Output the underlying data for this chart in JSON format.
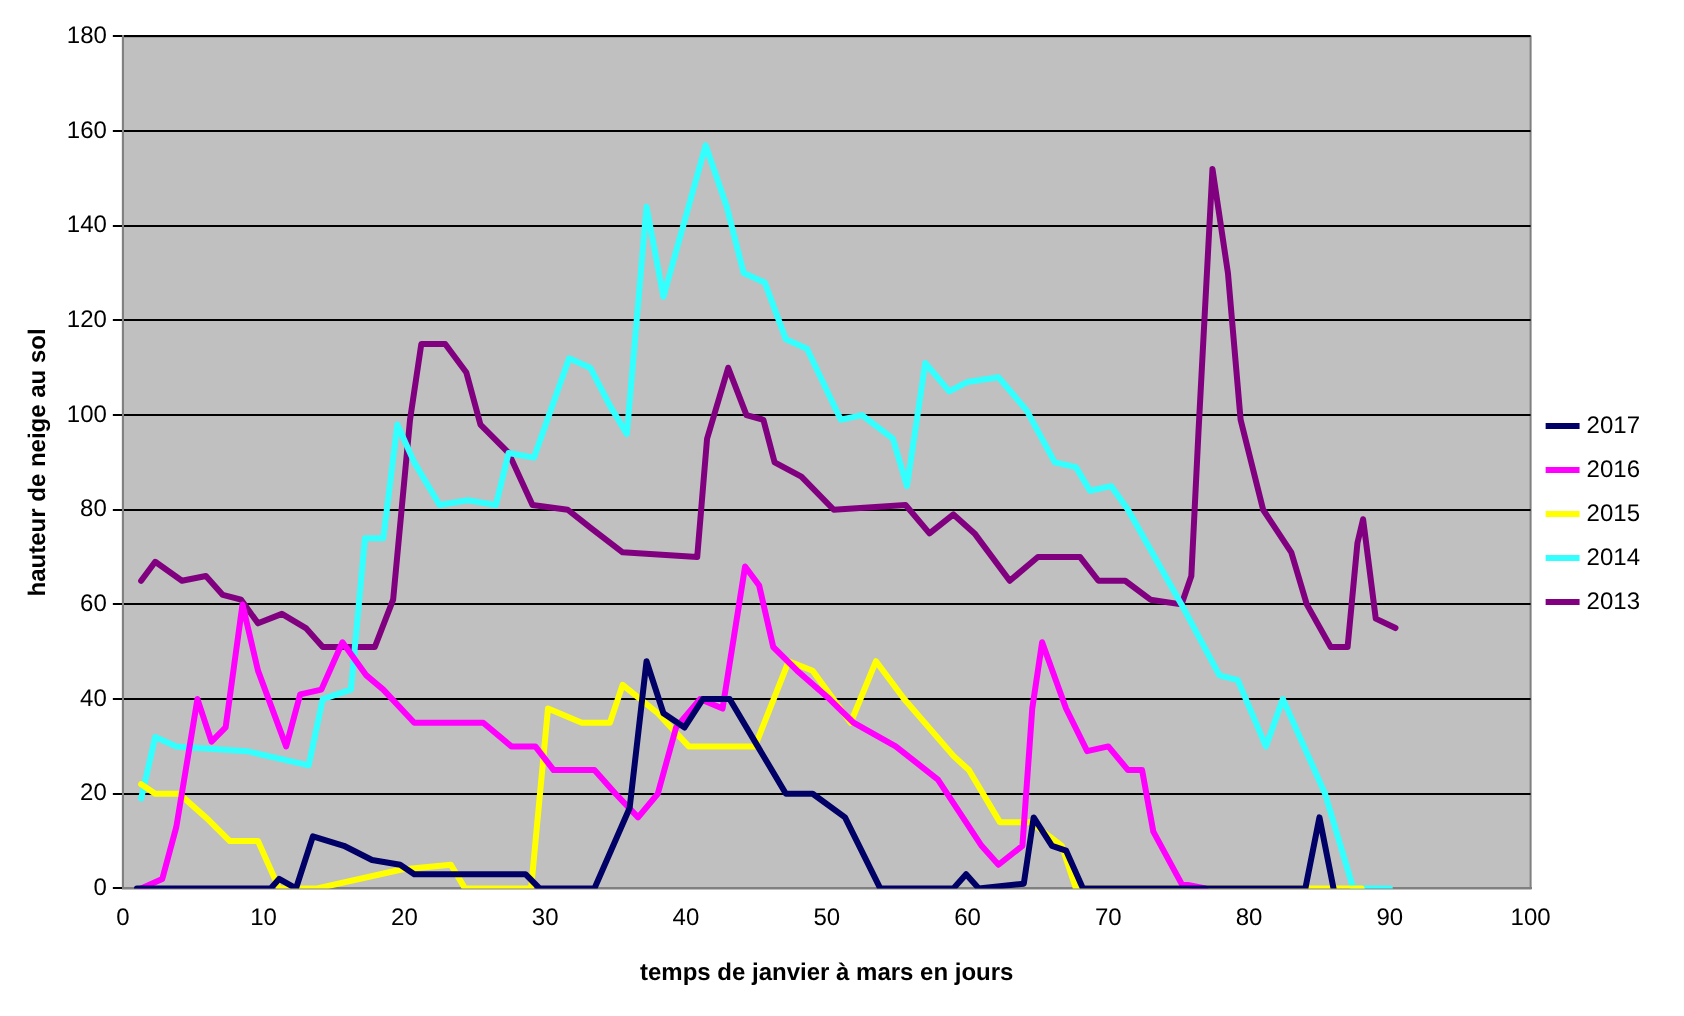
{
  "chart_data": {
    "type": "line",
    "xlabel": "temps de janvier à mars en jours",
    "ylabel": "hauteur de neige au sol",
    "xlim": [
      0,
      100
    ],
    "xticks": [
      0,
      10,
      20,
      30,
      40,
      50,
      60,
      70,
      80,
      90,
      100
    ],
    "ylim": [
      0,
      180
    ],
    "yticks": [
      0,
      20,
      40,
      60,
      80,
      100,
      120,
      140,
      160,
      180
    ],
    "grid": "y",
    "legend": "right",
    "marker": "none",
    "line_style": "solid",
    "series": [
      {
        "name": "2017",
        "color": "#000066",
        "x": [
          1,
          10.5,
          11.1,
          12.3,
          13.5,
          15.7,
          17.7,
          19.7,
          20.7,
          28.6,
          29.6,
          33.5,
          36,
          37.2,
          38.4,
          39.9,
          41.2,
          43.1,
          45.1,
          47.1,
          49,
          51.3,
          53.8,
          59,
          59.9,
          60.8,
          64,
          64.7,
          66,
          67,
          68.2,
          84,
          85,
          86
        ],
        "values": [
          0,
          0,
          2,
          0,
          11,
          9,
          6,
          5,
          3,
          3,
          0,
          0,
          17,
          48,
          37,
          34,
          40,
          40,
          30,
          20,
          20,
          15,
          0,
          0,
          3,
          0,
          1,
          15,
          9,
          8,
          0,
          0,
          15,
          0
        ]
      },
      {
        "name": "2016",
        "color": "#ff00ff",
        "x": [
          1.3,
          2.8,
          3.8,
          5.3,
          6.3,
          7.3,
          8.5,
          9.6,
          11.6,
          12.6,
          14.1,
          15.6,
          17.3,
          18.5,
          20.7,
          25.6,
          27.6,
          29.3,
          30.6,
          33.5,
          35,
          36.6,
          38,
          39.3,
          41,
          42.6,
          44.2,
          45.2,
          46.2,
          47.9,
          50.2,
          51.9,
          54.9,
          57.9,
          61,
          62.2,
          63.9,
          64.6,
          65.3,
          67,
          68.5,
          70,
          71.4,
          72.4,
          73.2,
          75.2,
          76.9
        ],
        "values": [
          0,
          2,
          13,
          40,
          31,
          34,
          60,
          46,
          30,
          41,
          42,
          52,
          45,
          42,
          35,
          35,
          30,
          30,
          25,
          25,
          20,
          15,
          20,
          34,
          40,
          38,
          68,
          64,
          51,
          46,
          40,
          35,
          30,
          23,
          9,
          5,
          9,
          38,
          52,
          38,
          29,
          30,
          25,
          25,
          12,
          1,
          0
        ]
      },
      {
        "name": "2015",
        "color": "#ffff00",
        "x": [
          1.3,
          2.3,
          4,
          5.9,
          7.6,
          9.6,
          11.1,
          13.8,
          19.8,
          23.3,
          24.3,
          29,
          30.2,
          32.6,
          34.6,
          35.5,
          38,
          40.2,
          44.9,
          47.3,
          49,
          51.7,
          53.5,
          55.5,
          59,
          60.1,
          62.3,
          64.5,
          66.7,
          67.7,
          88
        ],
        "values": [
          22,
          20,
          20,
          15,
          10,
          10,
          0,
          0,
          4,
          5,
          0,
          0,
          38,
          35,
          35,
          43,
          37,
          30,
          30,
          48,
          46,
          35,
          48,
          40,
          28,
          25,
          14,
          14,
          9,
          0,
          0
        ]
      },
      {
        "name": "2014",
        "color": "#33ffff",
        "x": [
          1.3,
          2.3,
          3.8,
          8.8,
          13.2,
          14.2,
          16.2,
          17.2,
          18.5,
          19.5,
          20.7,
          22.5,
          24.5,
          26.5,
          27.4,
          29.2,
          31.7,
          33.2,
          34.6,
          35.8,
          37.2,
          38.4,
          41.4,
          42.9,
          44.1,
          45.6,
          47.1,
          48.6,
          51,
          52.5,
          54.7,
          55.7,
          57,
          58.7,
          60,
          62.2,
          64.2,
          66.2,
          67.7,
          68.7,
          70.2,
          71.4,
          75.2,
          77.9,
          79.2,
          81.2,
          82.4,
          83.9,
          85.4,
          87.4,
          90
        ],
        "values": [
          19,
          32,
          30,
          29,
          26,
          40,
          42,
          74,
          74,
          98,
          90,
          81,
          82,
          81,
          92,
          91,
          112,
          110,
          102,
          96,
          144,
          125,
          157,
          144,
          130,
          128,
          116,
          114,
          99,
          100,
          95,
          85,
          111,
          105,
          107,
          108,
          101,
          90,
          89,
          84,
          85,
          80,
          60,
          45,
          44,
          30,
          40,
          30,
          20,
          0,
          0
        ]
      },
      {
        "name": "2013",
        "color": "#800080",
        "x": [
          1.3,
          2.3,
          4.2,
          5.9,
          7.1,
          8.4,
          9.6,
          11.3,
          13,
          14.2,
          17.9,
          19.2,
          20.4,
          21.2,
          22.9,
          24.4,
          25.4,
          27.4,
          29.1,
          31.6,
          33.3,
          35.5,
          40.8,
          41.5,
          43,
          44.3,
          45.5,
          46.3,
          48.2,
          50.5,
          55.6,
          57.3,
          59,
          60.5,
          61,
          63,
          65,
          68,
          69.3,
          71.2,
          73,
          75.2,
          75.9,
          76.4,
          77.4,
          78.5,
          79.4,
          81,
          83,
          84.1,
          85.8,
          87,
          87.7,
          88.1,
          89,
          90.4
        ],
        "values": [
          65,
          69,
          65,
          66,
          62,
          61,
          56,
          58,
          55,
          51,
          51,
          61,
          99,
          115,
          115,
          109,
          98,
          92,
          81,
          80,
          76,
          71,
          70,
          95,
          110,
          100,
          99,
          90,
          87,
          80,
          81,
          75,
          79,
          75,
          73,
          65,
          70,
          70,
          65,
          65,
          61,
          60,
          66,
          96,
          152,
          130,
          99,
          80,
          71,
          60,
          51,
          51,
          73,
          78,
          57,
          55
        ]
      }
    ]
  }
}
